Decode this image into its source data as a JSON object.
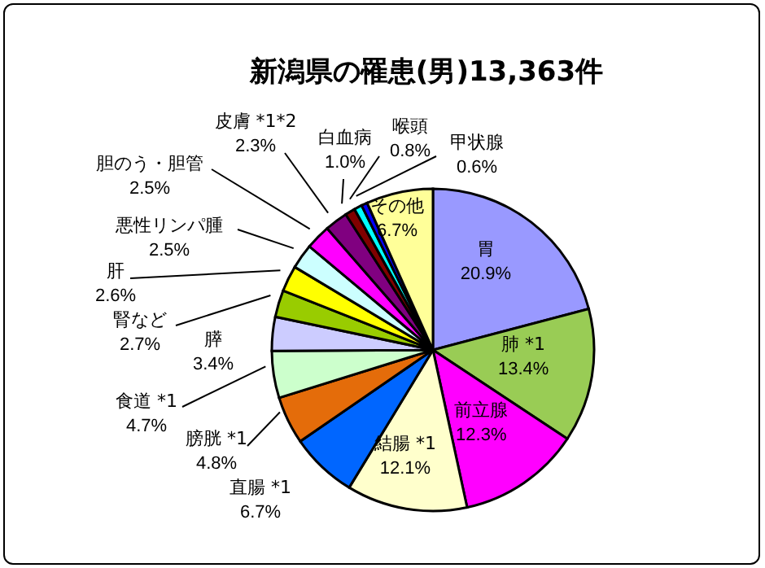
{
  "chart_data": {
    "type": "pie",
    "title": "新潟県の罹患(男)13,363件",
    "categories": [
      "胃",
      "肺 *1",
      "前立腺",
      "結腸 *1",
      "直腸 *1",
      "膀胱 *1",
      "食道 *1",
      "膵",
      "腎など",
      "肝",
      "悪性リンパ腫",
      "胆のう・胆管",
      "皮膚 *1*2",
      "白血病",
      "喉頭",
      "甲状腺",
      "その他"
    ],
    "values": [
      20.9,
      13.4,
      12.3,
      12.1,
      6.7,
      4.8,
      4.7,
      3.4,
      2.7,
      2.6,
      2.5,
      2.5,
      2.3,
      1.0,
      0.8,
      0.6,
      6.7
    ],
    "value_labels": [
      "20.9%",
      "13.4%",
      "12.3%",
      "12.1%",
      "6.7%",
      "4.8%",
      "4.7%",
      "3.4%",
      "2.7%",
      "2.6%",
      "2.5%",
      "2.5%",
      "2.3%",
      "1.0%",
      "0.8%",
      "0.6%",
      "6.7%"
    ],
    "colors": [
      "#9999ff",
      "#99cc55",
      "#ff00ff",
      "#ffffcc",
      "#0066ff",
      "#e46c0a",
      "#ccffcc",
      "#ccccff",
      "#99cc00",
      "#ffff00",
      "#ccffff",
      "#ff00ff",
      "#800080",
      "#800000",
      "#00ffff",
      "#0000ff",
      "#ffff99"
    ]
  }
}
